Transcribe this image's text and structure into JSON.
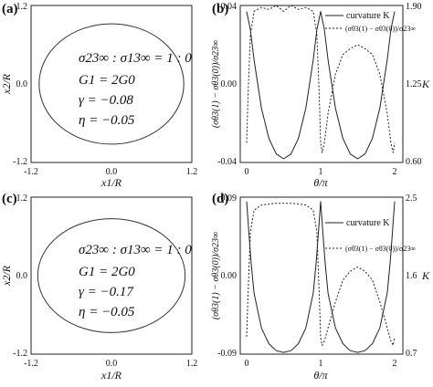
{
  "chart_data": [
    {
      "panel": "(a)",
      "type": "scatter",
      "shape": "ellipse",
      "xlabel": "x1/R",
      "ylabel": "x2/R",
      "xlim": [
        -1.2,
        1.2
      ],
      "ylim": [
        -1.2,
        1.2
      ],
      "xticks": [
        "-1.2",
        "0.0",
        "1.2"
      ],
      "yticks": [
        "1.2",
        "0.0",
        "-1.2"
      ],
      "ellipse": {
        "semi_axis_x": 1.08,
        "semi_axis_y": 0.92
      },
      "annotations": [
        "σ23∞ : σ13∞ = 1 : 0",
        "G1 = 2G0",
        "γ = −0.08",
        "η = −0.05"
      ]
    },
    {
      "panel": "(b)",
      "type": "line",
      "xlabel": "θ/π",
      "ylabel": "(σθ3(1) − σθ3(0))/σ23∞",
      "y2label": "K",
      "xlim": [
        0,
        2
      ],
      "ylim": [
        -0.04,
        0.04
      ],
      "y2lim": [
        0.6,
        1.9
      ],
      "xticks": [
        "0",
        "1",
        "2"
      ],
      "yticks": [
        "0.04",
        "0.00",
        "-0.04"
      ],
      "y2ticks": [
        "1.90",
        "1.25",
        "0.60"
      ],
      "legend": [
        "curvature K",
        "(σθ3(1) − σθ3(0))/σ23∞"
      ],
      "legend_position": "top-right",
      "series": [
        {
          "name": "curvature K",
          "style": "solid",
          "axis": "right",
          "x": [
            0,
            0.05,
            0.1,
            0.2,
            0.3,
            0.4,
            0.5,
            0.6,
            0.7,
            0.8,
            0.9,
            0.95,
            1.0,
            1.05,
            1.1,
            1.2,
            1.3,
            1.4,
            1.5,
            1.6,
            1.7,
            1.8,
            1.9,
            1.95,
            2.0
          ],
          "values": [
            1.85,
            1.7,
            1.45,
            1.05,
            0.8,
            0.67,
            0.63,
            0.67,
            0.8,
            1.05,
            1.45,
            1.7,
            1.85,
            1.7,
            1.45,
            1.05,
            0.8,
            0.67,
            0.63,
            0.67,
            0.8,
            1.05,
            1.45,
            1.7,
            1.85
          ]
        },
        {
          "name": "(σθ3(1) − σθ3(0))/σ23∞",
          "style": "dashed",
          "axis": "left",
          "x": [
            0,
            0.02,
            0.05,
            0.1,
            0.2,
            0.3,
            0.4,
            0.5,
            0.6,
            0.7,
            0.8,
            0.9,
            0.95,
            0.98,
            1.0,
            1.02,
            1.05,
            1.1,
            1.2,
            1.3,
            1.4,
            1.5,
            1.6,
            1.7,
            1.8,
            1.9,
            1.95,
            1.98,
            2.0
          ],
          "values": [
            -0.03,
            -0.005,
            0.025,
            0.037,
            0.039,
            0.038,
            0.04,
            0.037,
            0.04,
            0.038,
            0.039,
            0.037,
            0.025,
            -0.005,
            -0.03,
            -0.035,
            -0.03,
            -0.015,
            0.005,
            0.015,
            0.018,
            0.02,
            0.018,
            0.015,
            0.005,
            -0.015,
            -0.03,
            -0.035,
            -0.03
          ]
        }
      ]
    },
    {
      "panel": "(c)",
      "type": "scatter",
      "shape": "ellipse",
      "xlabel": "x1/R",
      "ylabel": "x2/R",
      "xlim": [
        -1.2,
        1.2
      ],
      "ylim": [
        -1.2,
        1.2
      ],
      "xticks": [
        "-1.2",
        "0.0",
        "1.2"
      ],
      "yticks": [
        "1.2",
        "0.0",
        "-1.2"
      ],
      "ellipse": {
        "semi_axis_x": 1.1,
        "semi_axis_y": 0.87
      },
      "annotations": [
        "σ23∞ : σ13∞ = 1 : 0",
        "G1 = 2G0",
        "γ = −0.17",
        "η = −0.05"
      ]
    },
    {
      "panel": "(d)",
      "type": "line",
      "xlabel": "θ/π",
      "ylabel": "(σθ3(1) − σθ3(0))/σ23∞",
      "y2label": "K",
      "xlim": [
        0,
        2
      ],
      "ylim": [
        -0.09,
        0.09
      ],
      "y2lim": [
        0.7,
        2.5
      ],
      "xticks": [
        "0",
        "1",
        "2"
      ],
      "yticks": [
        "0.09",
        "0.00",
        "-0.09"
      ],
      "y2ticks": [
        "2.5",
        "1.6",
        "0.7"
      ],
      "legend": [
        "curvature K",
        "(σθ3(1) − σθ3(0))/σ23∞"
      ],
      "legend_position": "top-right",
      "series": [
        {
          "name": "curvature K",
          "style": "solid",
          "axis": "right",
          "x": [
            0,
            0.03,
            0.06,
            0.1,
            0.2,
            0.3,
            0.4,
            0.5,
            0.6,
            0.7,
            0.8,
            0.9,
            0.94,
            0.97,
            1.0,
            1.03,
            1.06,
            1.1,
            1.2,
            1.3,
            1.4,
            1.5,
            1.6,
            1.7,
            1.8,
            1.9,
            1.94,
            1.97,
            2.0
          ],
          "values": [
            2.45,
            2.1,
            1.75,
            1.4,
            1.0,
            0.82,
            0.74,
            0.72,
            0.74,
            0.82,
            1.0,
            1.4,
            1.75,
            2.1,
            2.45,
            2.1,
            1.75,
            1.4,
            1.0,
            0.82,
            0.74,
            0.72,
            0.74,
            0.82,
            1.0,
            1.4,
            1.75,
            2.1,
            2.45
          ]
        },
        {
          "name": "(σθ3(1) − σθ3(0))/σ23∞",
          "style": "dashed",
          "axis": "left",
          "x": [
            0,
            0.02,
            0.05,
            0.1,
            0.2,
            0.3,
            0.4,
            0.5,
            0.6,
            0.7,
            0.8,
            0.9,
            0.95,
            0.98,
            1.0,
            1.02,
            1.05,
            1.1,
            1.2,
            1.3,
            1.4,
            1.5,
            1.6,
            1.7,
            1.8,
            1.9,
            1.95,
            1.98,
            2.0
          ],
          "values": [
            -0.07,
            -0.02,
            0.05,
            0.075,
            0.081,
            0.082,
            0.083,
            0.083,
            0.083,
            0.082,
            0.081,
            0.075,
            0.05,
            -0.02,
            -0.07,
            -0.08,
            -0.075,
            -0.06,
            -0.03,
            -0.005,
            0.005,
            0.01,
            0.005,
            -0.005,
            -0.03,
            -0.06,
            -0.075,
            -0.08,
            -0.07
          ]
        }
      ]
    }
  ]
}
